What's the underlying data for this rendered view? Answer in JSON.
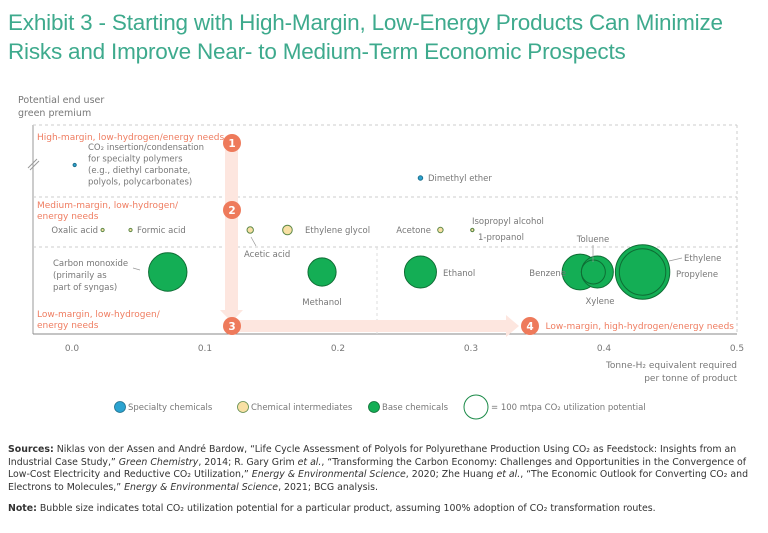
{
  "title_line1": "Exhibit 3 - Starting with High-Margin, Low-Energy Products Can Minimize",
  "title_line2": "Risks and Improve Near- to Medium-Term Economic Prospects",
  "chart_data": {
    "type": "scatter",
    "subtype": "bubble",
    "title": "Exhibit 3 - Starting with High-Margin, Low-Energy Products Can Minimize Risks and Improve Near- to Medium-Term Economic Prospects",
    "ylabel": [
      "Potential end user",
      "green premium"
    ],
    "xlabel": [
      "Tonne-H₂ equivalent required",
      "per tonne of product"
    ],
    "xlim": [
      0,
      0.5
    ],
    "x_ticks": [
      "0.0",
      "0.1",
      "0.2",
      "0.3",
      "0.4",
      "0.5"
    ],
    "grid": false,
    "bands": [
      {
        "id": "high",
        "label": "High-margin, low-hydrogen/energy needs",
        "step": "1"
      },
      {
        "id": "medium",
        "label": "Medium-margin, low-hydrogen/ energy needs",
        "step": "2"
      },
      {
        "id": "low",
        "label": "Low-margin, low-hydrogen/ energy needs",
        "step": "3"
      },
      {
        "id": "low-high-h2",
        "label": "Low-margin, high-hydrogen/energy needs",
        "step": "4"
      }
    ],
    "categories": [
      {
        "name": "Specialty chemicals",
        "color": "#2ba3d0"
      },
      {
        "name": "Chemical intermediates",
        "color": "#f8e0a4"
      },
      {
        "name": "Base chemicals",
        "color": "#14ae55"
      }
    ],
    "size_legend": "= 100 mtpa CO₂ utilization potential",
    "points": [
      {
        "label": "CO₂ insertion/condensation for specialty polymers (e.g., diethyl carbonate, polyols, polycarbonates)",
        "category": "Specialty chemicals",
        "band": "high",
        "x": 0.002,
        "size_rel": 0.04
      },
      {
        "label": "Dimethyl ether",
        "category": "Specialty chemicals",
        "band": "high",
        "x": 0.262,
        "size_rel": 0.14
      },
      {
        "label": "Oxalic acid",
        "category": "Chemical intermediates",
        "band": "medium",
        "x": 0.023,
        "size_rel": 0.03
      },
      {
        "label": "Formic acid",
        "category": "Chemical intermediates",
        "band": "medium",
        "x": 0.044,
        "size_rel": 0.03
      },
      {
        "label": "Acetic acid",
        "category": "Chemical intermediates",
        "band": "medium",
        "x": 0.134,
        "size_rel": 0.2
      },
      {
        "label": "Ethylene glycol",
        "category": "Chemical intermediates",
        "band": "medium",
        "x": 0.162,
        "size_rel": 0.3
      },
      {
        "label": "Acetone",
        "category": "Chemical intermediates",
        "band": "medium",
        "x": 0.277,
        "size_rel": 0.17
      },
      {
        "label": "Isopropyl alcohol",
        "category": "Chemical intermediates",
        "band": "medium",
        "x": 0.301,
        "size_rel": 0.08
      },
      {
        "label": "1-propanol",
        "category": "Chemical intermediates",
        "band": "medium",
        "x": 0.301,
        "size_rel": 0.04
      },
      {
        "label": "Carbon monoxide (primarily as part of syngas)",
        "category": "Base chemicals",
        "band": "low",
        "x": 0.072,
        "size_rel": 1.2
      },
      {
        "label": "Methanol",
        "category": "Base chemicals",
        "band": "low",
        "x": 0.188,
        "size_rel": 0.88
      },
      {
        "label": "Ethanol",
        "category": "Base chemicals",
        "band": "low",
        "x": 0.262,
        "size_rel": 1.0
      },
      {
        "label": "Benzene",
        "category": "Base chemicals",
        "band": "low",
        "x": 0.384,
        "size_rel": 1.12
      },
      {
        "label": "Xylene",
        "category": "Base chemicals",
        "band": "low",
        "x": 0.395,
        "size_rel": 1.0
      },
      {
        "label": "Toluene",
        "category": "Base chemicals",
        "band": "low",
        "x": 0.392,
        "size_rel": 0.75
      },
      {
        "label": "Ethylene",
        "category": "Base chemicals",
        "band": "low",
        "x": 0.429,
        "size_rel": 1.7
      },
      {
        "label": "Propylene",
        "category": "Base chemicals",
        "band": "low",
        "x": 0.429,
        "size_rel": 1.45
      }
    ]
  },
  "labels": {
    "specialty_polymers": [
      "CO₂ insertion/condensation",
      "for specialty polymers",
      "(e.g., diethyl carbonate,",
      "polyols, polycarbonates)"
    ],
    "carbon_monoxide": [
      "Carbon monoxide",
      "(primarily as",
      "part of syngas)"
    ],
    "medium_band": [
      "Medium-margin, low-hydrogen/",
      "energy needs"
    ],
    "low_band": [
      "Low-margin, low-hydrogen/",
      "energy needs"
    ]
  },
  "sources_label": "Sources:",
  "sources_text_1": " Niklas von der Assen and André Bardow, “Life Cycle Assessment of Polyols for Polyurethane Production Using CO₂ as Feedstock: Insights from an Industrial Case Study,” ",
  "sources_journal_1": "Green Chemistry",
  "sources_text_2": ", 2014; R. Gary Grim ",
  "sources_etal_1": "et al.",
  "sources_text_3": ", “Transforming the Carbon Economy: Challenges and Opportunities in the Convergence of Low-Cost Electricity and Reductive CO₂ Utilization,” ",
  "sources_journal_2": "Energy & Environmental Science",
  "sources_text_4": ", 2020; Zhe Huang ",
  "sources_etal_2": "et al.",
  "sources_text_5": ", “The Economic Outlook for Converting CO₂ and Electrons to Molecules,” ",
  "sources_journal_3": "Energy & Environmental Science",
  "sources_text_6": ", 2021; BCG analysis.",
  "note_label": "Note:",
  "note_text": " Bubble size indicates total CO₂ utilization potential for a particular product, assuming 100% adoption of CO₂ transformation routes.",
  "colors": {
    "title": "#3eaa8d",
    "band_label": "#ef7d61",
    "step_badge": "#ee7a5b",
    "arrow": "#fde6df",
    "text_gray": "#777777",
    "specialty": "#2ba3d0",
    "intermediate": "#f8e0a4",
    "base": "#14ae55",
    "base_stroke": "#0e6d34"
  }
}
